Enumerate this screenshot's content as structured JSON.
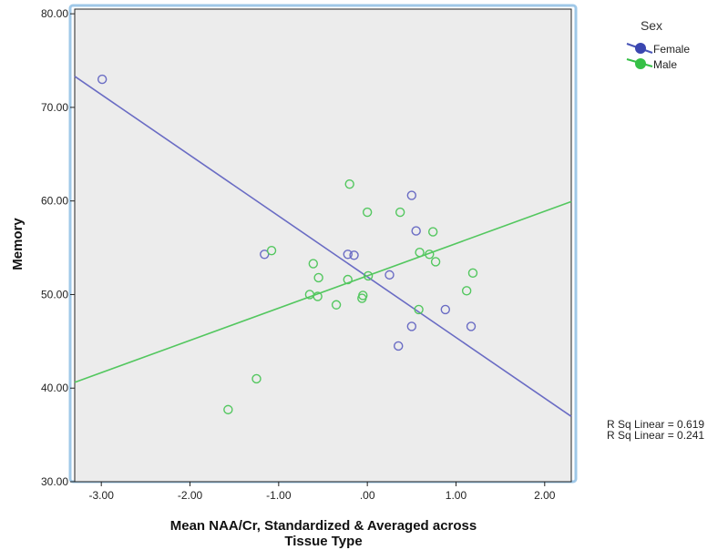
{
  "chart_data": {
    "type": "scatter",
    "xlabel_lines": [
      "Mean NAA/Cr, Standardized & Averaged across",
      "Tissue Type"
    ],
    "ylabel": "Memory",
    "xlim": [
      -3.3,
      2.3
    ],
    "ylim": [
      30,
      80.5
    ],
    "x_ticks": [
      -3,
      -2,
      -1,
      0,
      1,
      2
    ],
    "x_tick_labels": [
      "-3.00",
      "-2.00",
      "-1.00",
      ".00",
      "1.00",
      "2.00"
    ],
    "y_ticks": [
      30,
      40,
      50,
      60,
      70,
      80
    ],
    "y_tick_labels": [
      "30.00",
      "40.00",
      "50.00",
      "60.00",
      "70.00",
      "80.00"
    ],
    "grid": false,
    "background_color": "#ececec",
    "frame_color": "#9fc8e8",
    "legend": {
      "title": "Sex",
      "placement": "outside-top-right",
      "entries": [
        {
          "label": "Female",
          "color": "#4a56b8"
        },
        {
          "label": "Male",
          "color": "#35c046"
        }
      ]
    },
    "series": [
      {
        "name": "Female",
        "color": "#6a6cc4",
        "marker": "hollow-circle",
        "points": [
          [
            -2.99,
            73.0
          ],
          [
            -1.16,
            54.3
          ],
          [
            -0.22,
            54.3
          ],
          [
            -0.15,
            54.2
          ],
          [
            0.25,
            52.1
          ],
          [
            0.5,
            60.6
          ],
          [
            0.55,
            56.8
          ],
          [
            0.35,
            44.5
          ],
          [
            0.5,
            46.6
          ],
          [
            0.88,
            48.4
          ],
          [
            1.17,
            46.6
          ]
        ],
        "fit_line": {
          "slope": -6.49,
          "intercept": 51.9,
          "r_squared_label": "R Sq Linear = 0.619"
        }
      },
      {
        "name": "Male",
        "color": "#53c75f",
        "marker": "hollow-circle",
        "points": [
          [
            -1.08,
            54.7
          ],
          [
            -0.61,
            53.3
          ],
          [
            -0.55,
            51.8
          ],
          [
            -0.65,
            50.0
          ],
          [
            -0.56,
            49.8
          ],
          [
            -0.35,
            48.9
          ],
          [
            -0.22,
            51.6
          ],
          [
            -0.2,
            61.8
          ],
          [
            0.0,
            58.8
          ],
          [
            0.01,
            52.0
          ],
          [
            -0.05,
            49.9
          ],
          [
            -0.06,
            49.6
          ],
          [
            0.37,
            58.8
          ],
          [
            0.58,
            48.4
          ],
          [
            0.59,
            54.5
          ],
          [
            0.7,
            54.3
          ],
          [
            0.74,
            56.7
          ],
          [
            0.77,
            53.5
          ],
          [
            1.12,
            50.4
          ],
          [
            1.19,
            52.3
          ],
          [
            -1.25,
            41.0
          ],
          [
            -1.57,
            37.7
          ]
        ],
        "fit_line": {
          "slope": 3.45,
          "intercept": 52.0,
          "r_squared_label": "R Sq Linear = 0.241"
        }
      }
    ]
  }
}
